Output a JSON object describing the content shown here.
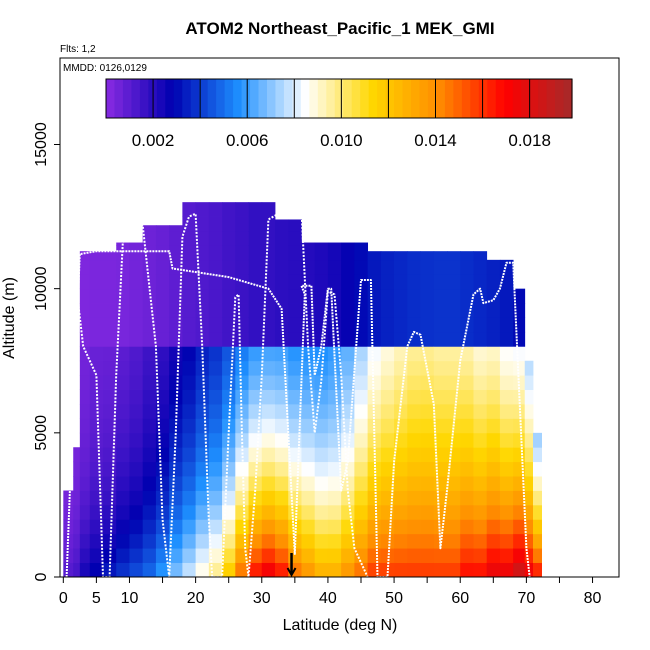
{
  "chart_data": {
    "type": "heatmap",
    "title": "ATOM2 Northeast_Pacific_1 MEK_GMI",
    "flights_label": "Flts: 1,2",
    "mmdd_label": "MMDD: 0126,0129",
    "xlabel": "Latitude (deg N)",
    "ylabel": "Altitude (m)",
    "xlim": [
      -0.5,
      84
    ],
    "ylim": [
      0,
      18000
    ],
    "x_ticks": [
      0,
      5,
      10,
      20,
      30,
      40,
      50,
      60,
      70,
      80
    ],
    "y_ticks": [
      0,
      5000,
      10000,
      15000
    ],
    "colorbar": {
      "range": [
        0,
        0.0198
      ],
      "tick_values": [
        0.002,
        0.006,
        0.01,
        0.014,
        0.018
      ],
      "tick_labels": [
        "0.002",
        "0.006",
        "0.010",
        "0.014",
        "0.018"
      ],
      "colors": [
        "#8a2be2",
        "#0000b0",
        "#1e90ff",
        "#ffffff",
        "#ffd700",
        "#ff8c00",
        "#ff0000",
        "#a52a2a"
      ]
    },
    "arrow_latitude": 34.5,
    "columns": [
      {
        "lat": 1,
        "top": 3000,
        "bg": 0.0003,
        "bl": 0.0012,
        "bh": 1500
      },
      {
        "lat": 2,
        "top": 4500,
        "bg": 0.0003,
        "bl": 0.0015,
        "bh": 2000
      },
      {
        "lat": 3,
        "top": 11300,
        "bg": 0.0004,
        "bl": 0.0025,
        "bh": 2500
      },
      {
        "lat": 5,
        "top": 11300,
        "bg": 0.0005,
        "bl": 0.003,
        "bh": 3000
      },
      {
        "lat": 7,
        "top": 11300,
        "bg": 0.0005,
        "bl": 0.0035,
        "bh": 3000
      },
      {
        "lat": 9,
        "top": 11600,
        "bg": 0.0006,
        "bl": 0.004,
        "bh": 3500
      },
      {
        "lat": 11,
        "top": 11600,
        "bg": 0.0008,
        "bl": 0.0045,
        "bh": 3500
      },
      {
        "lat": 13,
        "top": 12200,
        "bg": 0.001,
        "bl": 0.005,
        "bh": 4000
      },
      {
        "lat": 15,
        "top": 12200,
        "bg": 0.0012,
        "bl": 0.006,
        "bh": 4000
      },
      {
        "lat": 17,
        "top": 12200,
        "bg": 0.0015,
        "bl": 0.007,
        "bh": 4500
      },
      {
        "lat": 19,
        "top": 13000,
        "bg": 0.0018,
        "bl": 0.008,
        "bh": 4500
      },
      {
        "lat": 21,
        "top": 13000,
        "bg": 0.002,
        "bl": 0.009,
        "bh": 5000
      },
      {
        "lat": 23,
        "top": 13000,
        "bg": 0.0022,
        "bl": 0.01,
        "bh": 5000
      },
      {
        "lat": 25,
        "top": 13000,
        "bg": 0.0025,
        "bl": 0.012,
        "bh": 5000
      },
      {
        "lat": 27,
        "top": 13000,
        "bg": 0.0027,
        "bl": 0.015,
        "bh": 5000
      },
      {
        "lat": 29,
        "top": 13000,
        "bg": 0.003,
        "bl": 0.017,
        "bh": 5000
      },
      {
        "lat": 31,
        "top": 13000,
        "bg": 0.003,
        "bl": 0.018,
        "bh": 5000
      },
      {
        "lat": 33,
        "top": 12400,
        "bg": 0.0032,
        "bl": 0.017,
        "bh": 5000
      },
      {
        "lat": 35,
        "top": 12400,
        "bg": 0.0033,
        "bl": 0.015,
        "bh": 5000
      },
      {
        "lat": 37,
        "top": 11600,
        "bg": 0.0035,
        "bl": 0.014,
        "bh": 5000
      },
      {
        "lat": 39,
        "top": 11600,
        "bg": 0.0037,
        "bl": 0.013,
        "bh": 5000
      },
      {
        "lat": 41,
        "top": 11600,
        "bg": 0.004,
        "bl": 0.013,
        "bh": 5000
      },
      {
        "lat": 43,
        "top": 11600,
        "bg": 0.0045,
        "bl": 0.014,
        "bh": 5000
      },
      {
        "lat": 45,
        "top": 11600,
        "bg": 0.005,
        "bl": 0.015,
        "bh": 5500
      },
      {
        "lat": 47,
        "top": 11300,
        "bg": 0.0055,
        "bl": 0.016,
        "bh": 6000
      },
      {
        "lat": 49,
        "top": 11300,
        "bg": 0.0058,
        "bl": 0.016,
        "bh": 6500
      },
      {
        "lat": 51,
        "top": 11300,
        "bg": 0.006,
        "bl": 0.016,
        "bh": 7000
      },
      {
        "lat": 53,
        "top": 11300,
        "bg": 0.0062,
        "bl": 0.016,
        "bh": 7500
      },
      {
        "lat": 55,
        "top": 11300,
        "bg": 0.0063,
        "bl": 0.016,
        "bh": 7500
      },
      {
        "lat": 57,
        "top": 11300,
        "bg": 0.0064,
        "bl": 0.016,
        "bh": 7000
      },
      {
        "lat": 59,
        "top": 11300,
        "bg": 0.0064,
        "bl": 0.016,
        "bh": 7000
      },
      {
        "lat": 61,
        "top": 11300,
        "bg": 0.0062,
        "bl": 0.017,
        "bh": 6500
      },
      {
        "lat": 63,
        "top": 11300,
        "bg": 0.006,
        "bl": 0.017,
        "bh": 6000
      },
      {
        "lat": 65,
        "top": 11000,
        "bg": 0.0058,
        "bl": 0.018,
        "bh": 6000
      },
      {
        "lat": 67,
        "top": 11000,
        "bg": 0.0055,
        "bl": 0.018,
        "bh": 5500
      },
      {
        "lat": 69,
        "top": 10000,
        "bg": 0.005,
        "bl": 0.019,
        "bh": 5500
      },
      {
        "lat": 70.5,
        "top": 7500,
        "bg": 0.0045,
        "bl": 0.018,
        "bh": 5000
      },
      {
        "lat": 71.5,
        "top": 5000,
        "bg": 0.004,
        "bl": 0.017,
        "bh": 3500
      }
    ],
    "flight_track": [
      [
        0.5,
        0
      ],
      [
        1,
        3000
      ],
      [
        2,
        8500
      ],
      [
        2.5,
        11200
      ],
      [
        5,
        11300
      ],
      [
        12,
        11300
      ],
      [
        16,
        11300
      ],
      [
        16.5,
        10700
      ],
      [
        25,
        10400
      ],
      [
        28,
        10200
      ],
      [
        31,
        10000
      ],
      [
        33,
        9300
      ],
      [
        35,
        800
      ],
      [
        36.5,
        9800
      ],
      [
        36,
        10100
      ],
      [
        37.5,
        10100
      ],
      [
        38,
        7000
      ],
      [
        39,
        8000
      ],
      [
        40,
        10000
      ],
      [
        40.5,
        10000
      ],
      [
        42,
        3000
      ],
      [
        43,
        4000
      ],
      [
        45,
        10300
      ],
      [
        46.5,
        10300
      ],
      [
        47.5,
        0
      ],
      [
        49,
        0
      ],
      [
        50,
        4000
      ],
      [
        52,
        8000
      ],
      [
        53,
        8500
      ],
      [
        54,
        8400
      ],
      [
        56,
        6000
      ],
      [
        57,
        1000
      ],
      [
        58,
        3000
      ],
      [
        60,
        7500
      ],
      [
        62,
        9800
      ],
      [
        63,
        10000
      ],
      [
        63.5,
        9500
      ],
      [
        65,
        9600
      ],
      [
        66,
        10000
      ],
      [
        67,
        10900
      ],
      [
        68,
        10900
      ],
      [
        70,
        1000
      ],
      [
        70.5,
        0
      ]
    ],
    "flight_track_2": [
      [
        2,
        10000
      ],
      [
        3,
        8000
      ],
      [
        5,
        7000
      ],
      [
        6,
        0
      ],
      [
        7,
        0
      ],
      [
        8,
        7000
      ],
      [
        9,
        11600
      ],
      [
        11,
        12100
      ],
      [
        12,
        12200
      ],
      [
        14,
        8000
      ],
      [
        15,
        2000
      ],
      [
        16,
        0
      ],
      [
        17,
        5000
      ],
      [
        18,
        11800
      ],
      [
        19,
        12500
      ],
      [
        20,
        12600
      ],
      [
        21,
        8000
      ],
      [
        22,
        2000
      ],
      [
        22.5,
        0
      ],
      [
        24,
        0
      ],
      [
        25,
        5000
      ],
      [
        26,
        9700
      ],
      [
        26.5,
        9800
      ],
      [
        27,
        5000
      ],
      [
        27.5,
        1000
      ],
      [
        28,
        0
      ],
      [
        29,
        3000
      ],
      [
        30,
        7000
      ],
      [
        31,
        12400
      ],
      [
        34,
        12800
      ],
      [
        36,
        12700
      ],
      [
        37,
        8000
      ],
      [
        38,
        5000
      ],
      [
        39,
        6800
      ],
      [
        40,
        9900
      ],
      [
        41,
        9800
      ],
      [
        42,
        7000
      ],
      [
        43,
        3000
      ],
      [
        44,
        1000
      ],
      [
        45,
        500
      ],
      [
        46,
        0
      ]
    ]
  }
}
